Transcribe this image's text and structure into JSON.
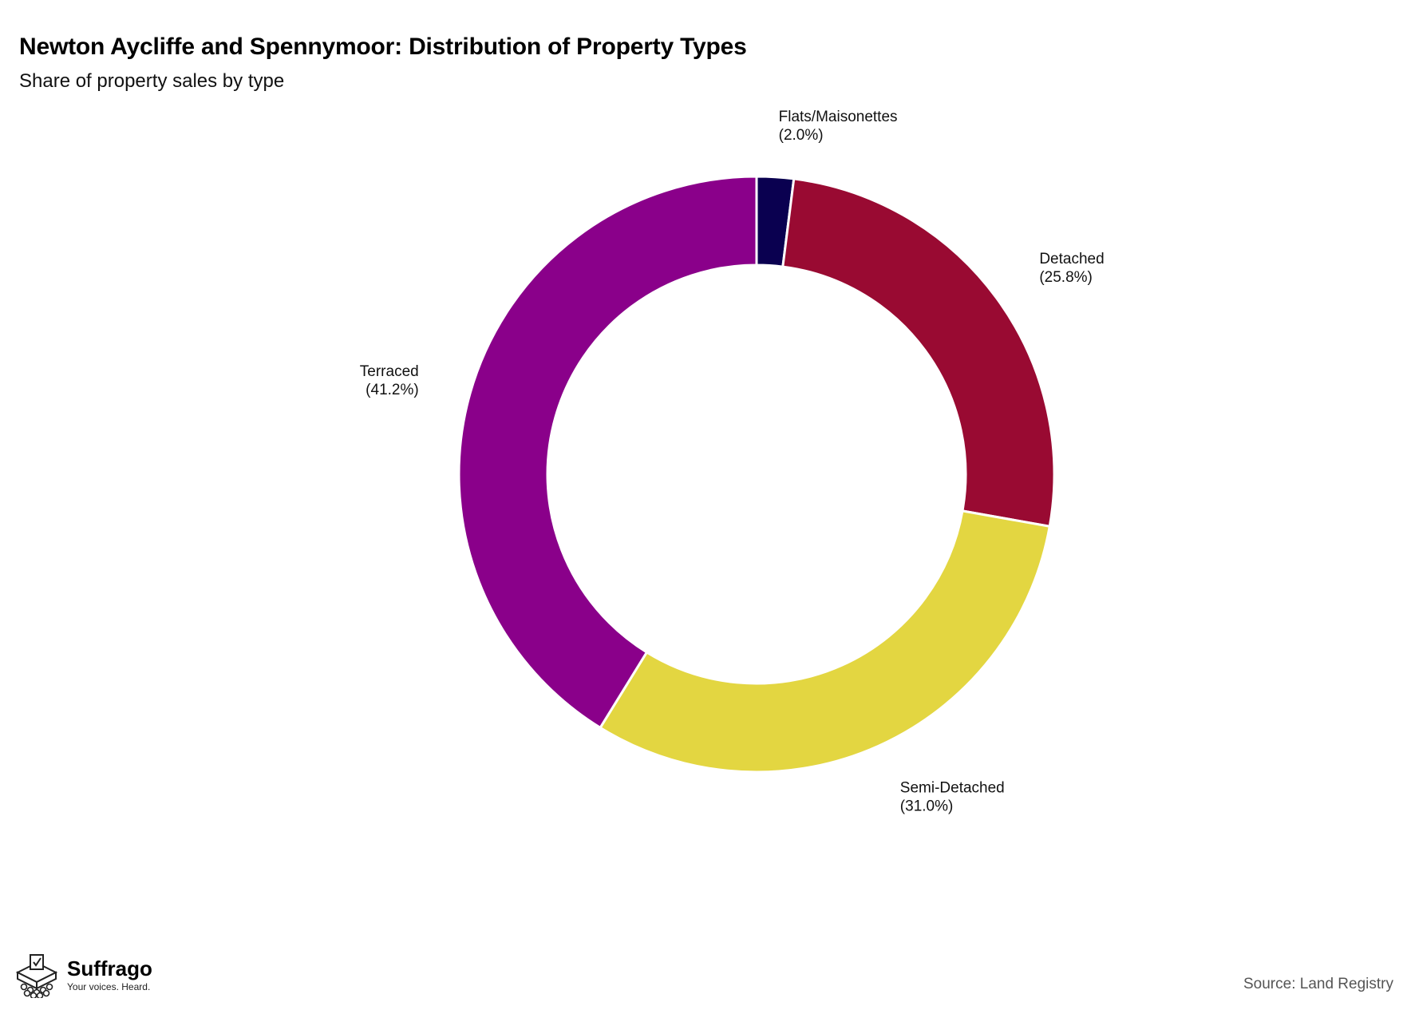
{
  "header": {
    "title": "Newton Aycliffe and Spennymoor: Distribution of Property Types",
    "subtitle": "Share of property sales by type"
  },
  "chart_data": {
    "type": "pie",
    "title": "Newton Aycliffe and Spennymoor: Distribution of Property Types",
    "subtitle": "Share of property sales by type",
    "donut": true,
    "start": "top, clockwise",
    "slices": [
      {
        "label": "Flats/Maisonettes",
        "value": 2.0,
        "display": "(2.0%)",
        "color": "#0a0050"
      },
      {
        "label": "Detached",
        "value": 25.8,
        "display": "(25.8%)",
        "color": "#990a32"
      },
      {
        "label": "Semi-Detached",
        "value": 31.0,
        "display": "(31.0%)",
        "color": "#e3d641"
      },
      {
        "label": "Terraced",
        "value": 41.2,
        "display": "(41.2%)",
        "color": "#8a008a"
      }
    ]
  },
  "footer": {
    "brand_name": "Suffrago",
    "brand_tagline": "Your voices. Heard.",
    "source": "Source: Land Registry"
  }
}
